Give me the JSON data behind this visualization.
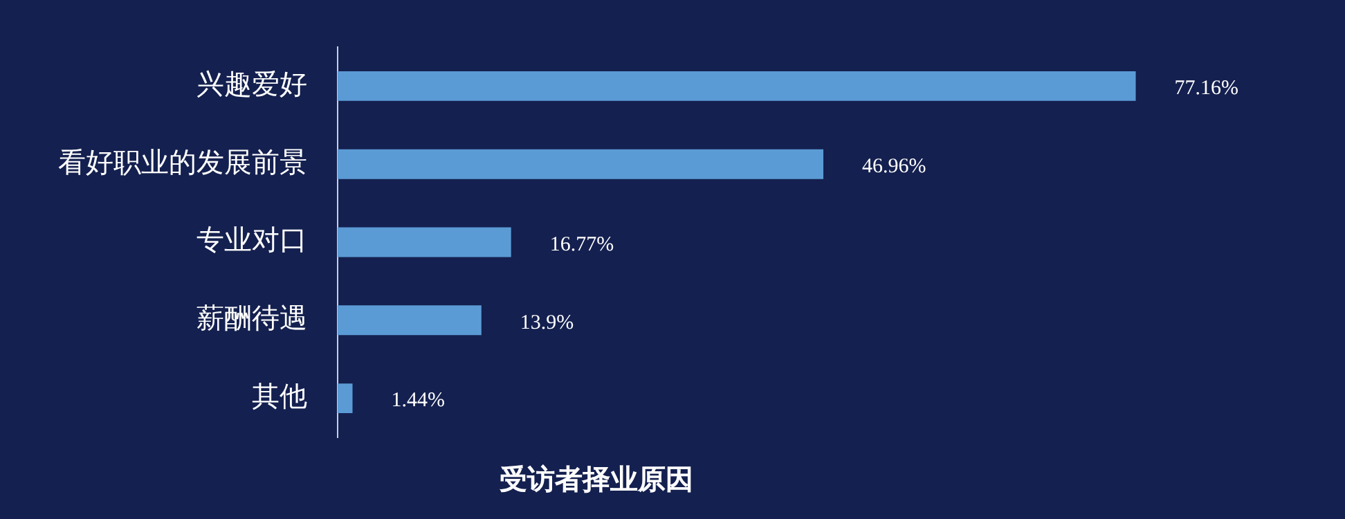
{
  "chart_data": {
    "type": "bar",
    "orientation": "horizontal",
    "title": "受访者择业原因",
    "categories": [
      "兴趣爱好",
      "看好职业的发展前景",
      "专业对口",
      "薪酬待遇",
      "其他"
    ],
    "values": [
      77.16,
      46.96,
      16.77,
      13.9,
      1.44
    ],
    "value_labels": [
      "77.16%",
      "46.96%",
      "16.77%",
      "13.9%",
      "1.44%"
    ],
    "color": "#5b9bd5",
    "legend": false
  }
}
